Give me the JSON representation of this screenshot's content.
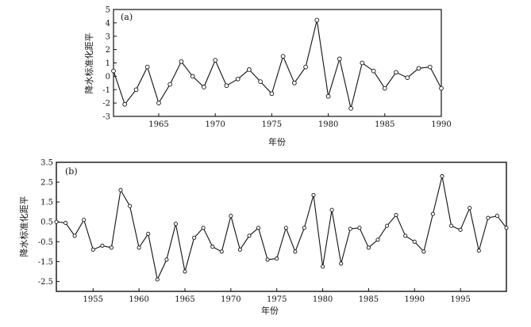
{
  "chart_data": [
    {
      "type": "line",
      "panel_label": "(a)",
      "ylabel": "降水标准化距平",
      "xlabel": "年份",
      "xlim": [
        1961,
        1990
      ],
      "ylim": [
        -3,
        5
      ],
      "x_ticks": [
        1965,
        1970,
        1975,
        1980,
        1985,
        1990
      ],
      "y_ticks": [
        -3,
        -2,
        -1,
        0,
        1,
        2,
        3,
        4,
        5
      ],
      "grid": false,
      "series": [
        {
          "x": [
            1961,
            1962,
            1963,
            1964,
            1965,
            1966,
            1967,
            1968,
            1969,
            1970,
            1971,
            1972,
            1973,
            1974,
            1975,
            1976,
            1977,
            1978,
            1979,
            1980,
            1981,
            1982,
            1983,
            1984,
            1985,
            1986,
            1987,
            1988,
            1989,
            1990
          ],
          "values": [
            0.4,
            -2.1,
            -1.0,
            0.7,
            -2.0,
            -0.6,
            1.1,
            0.0,
            -0.8,
            1.2,
            -0.7,
            -0.2,
            0.5,
            -0.4,
            -1.3,
            1.5,
            -0.5,
            0.7,
            4.2,
            -1.5,
            1.3,
            -2.4,
            1.0,
            0.4,
            -0.9,
            0.3,
            -0.1,
            0.6,
            0.7,
            -0.9
          ]
        }
      ]
    },
    {
      "type": "line",
      "panel_label": "(b)",
      "ylabel": "降水标准化距平",
      "xlabel": "年份",
      "xlim": [
        1951,
        2000
      ],
      "ylim": [
        -3.0,
        3.5
      ],
      "x_ticks": [
        1955,
        1960,
        1965,
        1970,
        1975,
        1980,
        1985,
        1990,
        1995
      ],
      "y_ticks": [
        -2.5,
        -1.5,
        -0.5,
        0.5,
        1.5,
        2.5,
        3.5
      ],
      "grid": false,
      "series": [
        {
          "x": [
            1951,
            1952,
            1953,
            1954,
            1955,
            1956,
            1957,
            1958,
            1959,
            1960,
            1961,
            1962,
            1963,
            1964,
            1965,
            1966,
            1967,
            1968,
            1969,
            1970,
            1971,
            1972,
            1973,
            1974,
            1975,
            1976,
            1977,
            1978,
            1979,
            1980,
            1981,
            1982,
            1983,
            1984,
            1985,
            1986,
            1987,
            1988,
            1989,
            1990,
            1991,
            1992,
            1993,
            1994,
            1995,
            1996,
            1997,
            1998,
            1999,
            2000
          ],
          "values": [
            0.5,
            0.45,
            -0.2,
            0.6,
            -0.9,
            -0.7,
            -0.8,
            2.1,
            1.3,
            -0.8,
            -0.1,
            -2.4,
            -1.4,
            0.4,
            -2.0,
            -0.3,
            0.2,
            -0.75,
            -1.0,
            0.8,
            -0.9,
            -0.2,
            0.2,
            -1.4,
            -1.35,
            0.2,
            -1.0,
            0.2,
            1.85,
            -1.75,
            1.1,
            -1.6,
            0.15,
            0.2,
            -0.8,
            -0.4,
            0.3,
            0.85,
            -0.2,
            -0.5,
            -1.0,
            0.9,
            2.8,
            0.3,
            0.1,
            1.2,
            -0.95,
            0.7,
            0.8,
            0.2
          ]
        }
      ]
    }
  ]
}
